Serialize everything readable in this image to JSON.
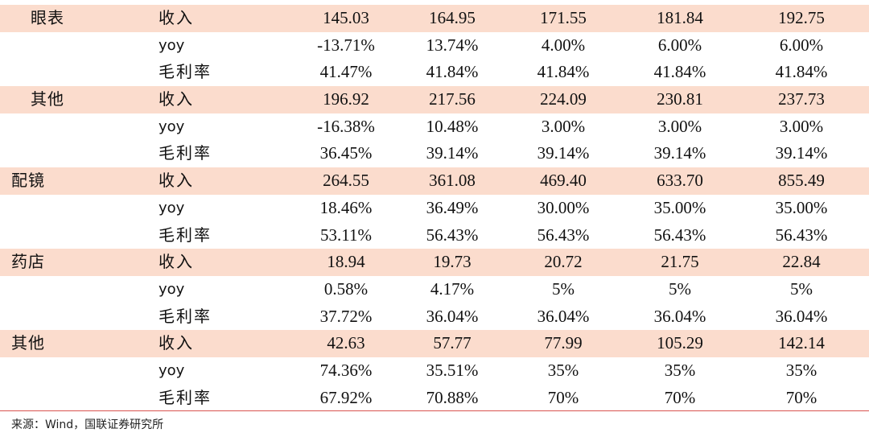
{
  "rows": [
    {
      "segment": "眼表",
      "metric": "收入",
      "values": [
        "145.03",
        "164.95",
        "171.55",
        "181.84",
        "192.75"
      ]
    },
    {
      "segment": "",
      "metric": "yoy",
      "values": [
        "-13.71%",
        "13.74%",
        "4.00%",
        "6.00%",
        "6.00%"
      ]
    },
    {
      "segment": "",
      "metric": "毛利率",
      "values": [
        "41.47%",
        "41.84%",
        "41.84%",
        "41.84%",
        "41.84%"
      ]
    },
    {
      "segment": "其他",
      "metric": "收入",
      "values": [
        "196.92",
        "217.56",
        "224.09",
        "230.81",
        "237.73"
      ]
    },
    {
      "segment": "",
      "metric": "yoy",
      "values": [
        "-16.38%",
        "10.48%",
        "3.00%",
        "3.00%",
        "3.00%"
      ]
    },
    {
      "segment": "",
      "metric": "毛利率",
      "values": [
        "36.45%",
        "39.14%",
        "39.14%",
        "39.14%",
        "39.14%"
      ]
    },
    {
      "segment": "配镜",
      "metric": "收入",
      "values": [
        "264.55",
        "361.08",
        "469.40",
        "633.70",
        "855.49"
      ]
    },
    {
      "segment": "",
      "metric": "yoy",
      "values": [
        "18.46%",
        "36.49%",
        "30.00%",
        "35.00%",
        "35.00%"
      ]
    },
    {
      "segment": "",
      "metric": "毛利率",
      "values": [
        "53.11%",
        "56.43%",
        "56.43%",
        "56.43%",
        "56.43%"
      ]
    },
    {
      "segment": "药店",
      "metric": "收入",
      "values": [
        "18.94",
        "19.73",
        "20.72",
        "21.75",
        "22.84"
      ]
    },
    {
      "segment": "",
      "metric": "yoy",
      "values": [
        "0.58%",
        "4.17%",
        "5%",
        "5%",
        "5%"
      ]
    },
    {
      "segment": "",
      "metric": "毛利率",
      "values": [
        "37.72%",
        "36.04%",
        "36.04%",
        "36.04%",
        "36.04%"
      ]
    },
    {
      "segment": "其他",
      "metric": "收入",
      "values": [
        "42.63",
        "57.77",
        "77.99",
        "105.29",
        "142.14"
      ]
    },
    {
      "segment": "",
      "metric": "yoy",
      "values": [
        "74.36%",
        "35.51%",
        "35%",
        "35%",
        "35%"
      ]
    },
    {
      "segment": "",
      "metric": "毛利率",
      "values": [
        "67.92%",
        "70.88%",
        "70%",
        "70%",
        "70%"
      ]
    }
  ],
  "source_note": "来源：Wind，国联证券研究所"
}
